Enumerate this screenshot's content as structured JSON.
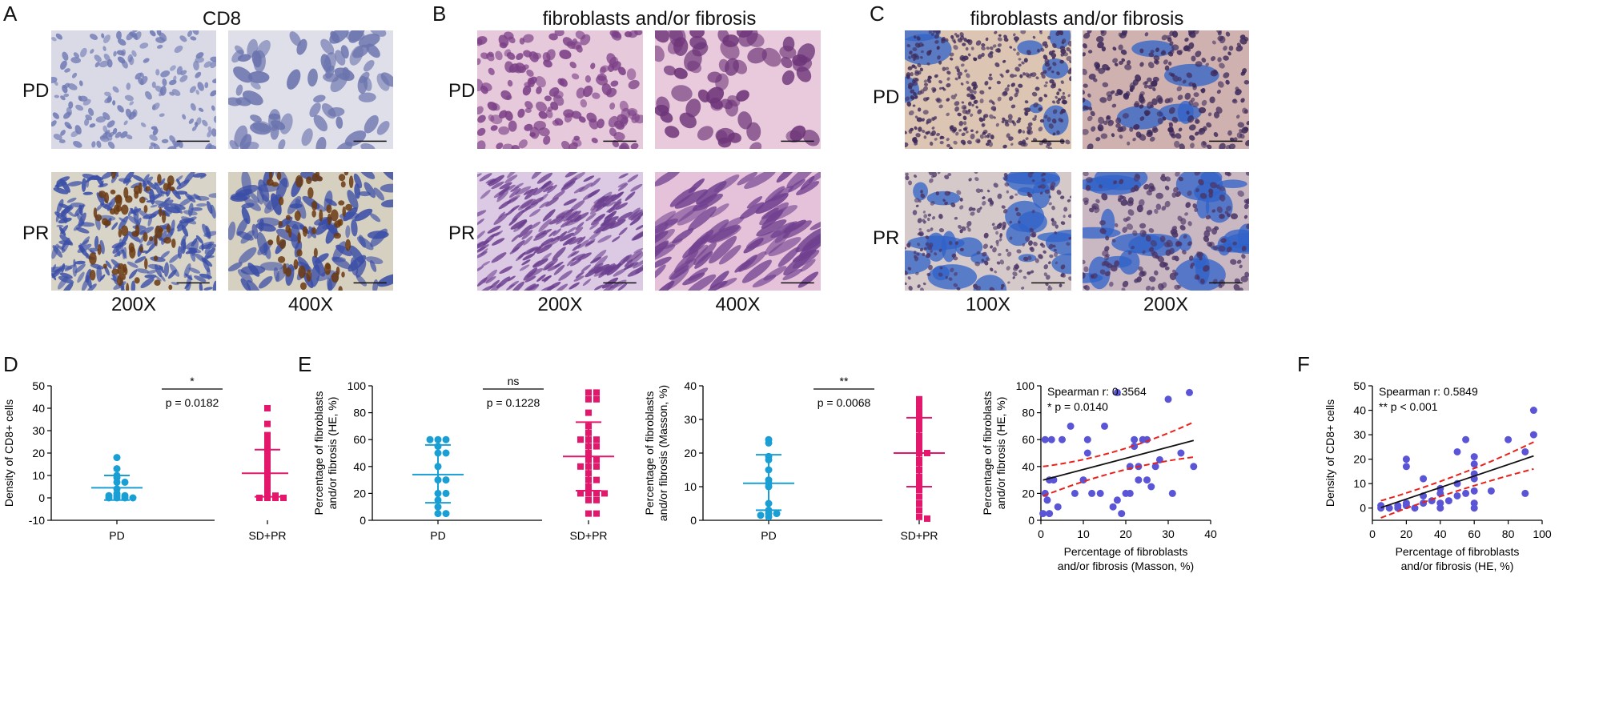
{
  "panels": {
    "A": {
      "letter": "A",
      "title": "CD8",
      "row_labels": [
        "PD",
        "PR"
      ],
      "magnifications": [
        "200X",
        "400X"
      ]
    },
    "B": {
      "letter": "B",
      "title": "fibroblasts and/or fibrosis",
      "row_labels": [
        "PD",
        "PR"
      ],
      "magnifications": [
        "200X",
        "400X"
      ]
    },
    "C": {
      "letter": "C",
      "title": "fibroblasts and/or fibrosis",
      "row_labels": [
        "PD",
        "PR"
      ],
      "magnifications": [
        "100X",
        "200X"
      ]
    },
    "D": {
      "letter": "D"
    },
    "E": {
      "letter": "E"
    },
    "F": {
      "letter": "F"
    }
  },
  "colors": {
    "pd": "#1a9fd4",
    "sdpr": "#e3176b",
    "scatter": "#5a55d6",
    "ci": "#e8221b",
    "fit": "#111111"
  },
  "chart_data": [
    {
      "id": "D",
      "type": "scatter",
      "categories": [
        "PD",
        "SD+PR"
      ],
      "ylabel": "Density of CD8+ cells",
      "ylim": [
        -10,
        50
      ],
      "yticks": [
        -10,
        0,
        10,
        20,
        30,
        40,
        50
      ],
      "significance": "*",
      "p_text": "p = 0.0182",
      "groups": [
        {
          "name": "PD",
          "mean": 4.5,
          "sd_low": -1,
          "sd_high": 10,
          "points": [
            18,
            13,
            10,
            9,
            7,
            7,
            4,
            2,
            1,
            1,
            1,
            0,
            0,
            0,
            0
          ]
        },
        {
          "name": "SD+PR",
          "mean": 11,
          "sd_low": 0.5,
          "sd_high": 21.5,
          "points": [
            40,
            33,
            28,
            26,
            25,
            24,
            23,
            22,
            21,
            20,
            19,
            17,
            15,
            13,
            12,
            10,
            9,
            8,
            7,
            6,
            5,
            4,
            3,
            2,
            1,
            1,
            0,
            0,
            0,
            0
          ]
        }
      ]
    },
    {
      "id": "E1",
      "type": "scatter",
      "categories": [
        "PD",
        "SD+PR"
      ],
      "ylabel": "Percentage of fibroblasts and/or fibrosis (HE, %)",
      "ylim": [
        0,
        100
      ],
      "yticks": [
        0,
        20,
        40,
        60,
        80,
        100
      ],
      "significance": "ns",
      "p_text": "p = 0.1228",
      "groups": [
        {
          "name": "PD",
          "mean": 34,
          "sd_low": 13,
          "sd_high": 56,
          "points": [
            60,
            60,
            60,
            55,
            50,
            50,
            40,
            30,
            30,
            20,
            20,
            15,
            10,
            5,
            5
          ]
        },
        {
          "name": "SD+PR",
          "mean": 47.5,
          "sd_low": 22,
          "sd_high": 73,
          "points": [
            95,
            95,
            90,
            90,
            80,
            70,
            65,
            60,
            60,
            60,
            55,
            55,
            50,
            45,
            45,
            40,
            40,
            40,
            35,
            30,
            30,
            25,
            20,
            20,
            20,
            20,
            15,
            15,
            5,
            5
          ]
        }
      ]
    },
    {
      "id": "E2",
      "type": "scatter",
      "categories": [
        "PD",
        "SD+PR"
      ],
      "ylabel": "Percentage of fibroblasts and/or fibrosis (Masson, %)",
      "ylim": [
        0,
        40
      ],
      "yticks": [
        0,
        10,
        20,
        30,
        40
      ],
      "significance": "**",
      "p_text": "p = 0.0068",
      "groups": [
        {
          "name": "PD",
          "mean": 11,
          "sd_low": 3,
          "sd_high": 19.5,
          "points": [
            24,
            23,
            19,
            18,
            15,
            12,
            11,
            10,
            5,
            3,
            2,
            2,
            1.5,
            1
          ]
        },
        {
          "name": "SD+PR",
          "mean": 20,
          "sd_low": 10,
          "sd_high": 30.5,
          "points": [
            36,
            35,
            34,
            33,
            32,
            31,
            30,
            29,
            28,
            27,
            25,
            24,
            23,
            22,
            21,
            20,
            20,
            18,
            17,
            15,
            13,
            12,
            11,
            9,
            7,
            5,
            3,
            1,
            0.5
          ]
        }
      ]
    },
    {
      "id": "E3",
      "type": "scatter",
      "xlabel": "Percentage of fibroblasts and/or fibrosis (Masson, %)",
      "ylabel": "Percentage of fibroblasts and/or fibrosis (HE, %)",
      "xlim": [
        0,
        40
      ],
      "ylim": [
        0,
        100
      ],
      "xticks": [
        0,
        10,
        20,
        30,
        40
      ],
      "yticks": [
        0,
        20,
        40,
        60,
        80,
        100
      ],
      "annotation": [
        "Spearman r: 0.3564",
        "* p = 0.0140"
      ],
      "points": [
        [
          0.5,
          5
        ],
        [
          1,
          60
        ],
        [
          1,
          20
        ],
        [
          1.5,
          15
        ],
        [
          2,
          5
        ],
        [
          2,
          30
        ],
        [
          2.5,
          60
        ],
        [
          3,
          30
        ],
        [
          4,
          10
        ],
        [
          5,
          60
        ],
        [
          7,
          70
        ],
        [
          8,
          20
        ],
        [
          10,
          30
        ],
        [
          11,
          50
        ],
        [
          11,
          60
        ],
        [
          12,
          20
        ],
        [
          14,
          20
        ],
        [
          15,
          70
        ],
        [
          17,
          10
        ],
        [
          18,
          15
        ],
        [
          18,
          95
        ],
        [
          19,
          5
        ],
        [
          20,
          20
        ],
        [
          21,
          20
        ],
        [
          21,
          40
        ],
        [
          22,
          60
        ],
        [
          22,
          55
        ],
        [
          23,
          40
        ],
        [
          23,
          30
        ],
        [
          24,
          60
        ],
        [
          25,
          60
        ],
        [
          26,
          25
        ],
        [
          27,
          40
        ],
        [
          28,
          45
        ],
        [
          30,
          90
        ],
        [
          31,
          20
        ],
        [
          33,
          50
        ],
        [
          35,
          95
        ],
        [
          36,
          40
        ],
        [
          25,
          30
        ]
      ],
      "fit": {
        "slope": 0.83,
        "intercept": 29.5,
        "x_range": [
          0.5,
          36
        ]
      },
      "ci_upper": [
        [
          0.5,
          40
        ],
        [
          18,
          47
        ],
        [
          36,
          73
        ]
      ],
      "ci_lower": [
        [
          0.5,
          18
        ],
        [
          18,
          40
        ],
        [
          36,
          47
        ]
      ]
    },
    {
      "id": "F",
      "type": "scatter",
      "xlabel": "Percentage of fibroblasts and/or fibrosis (HE, %)",
      "ylabel": "Density of CD8+ cells",
      "xlim": [
        0,
        100
      ],
      "ylim": [
        -5,
        50
      ],
      "xticks": [
        0,
        20,
        40,
        60,
        80,
        100
      ],
      "yticks": [
        0,
        10,
        20,
        30,
        40,
        50
      ],
      "annotation": [
        "Spearman r: 0.5849",
        "** p < 0.001"
      ],
      "points": [
        [
          5,
          0
        ],
        [
          5,
          1
        ],
        [
          10,
          0
        ],
        [
          15,
          0
        ],
        [
          15,
          1
        ],
        [
          20,
          20
        ],
        [
          20,
          17
        ],
        [
          20,
          2
        ],
        [
          20,
          1
        ],
        [
          25,
          0
        ],
        [
          30,
          12
        ],
        [
          30,
          5
        ],
        [
          30,
          2
        ],
        [
          35,
          3
        ],
        [
          40,
          8
        ],
        [
          40,
          6
        ],
        [
          40,
          2
        ],
        [
          40,
          0
        ],
        [
          45,
          3
        ],
        [
          50,
          23
        ],
        [
          50,
          10
        ],
        [
          50,
          5
        ],
        [
          55,
          28
        ],
        [
          55,
          6
        ],
        [
          60,
          21
        ],
        [
          60,
          18
        ],
        [
          60,
          14
        ],
        [
          60,
          12
        ],
        [
          60,
          7
        ],
        [
          60,
          2
        ],
        [
          60,
          0
        ],
        [
          70,
          7
        ],
        [
          80,
          28
        ],
        [
          90,
          23
        ],
        [
          90,
          6
        ],
        [
          95,
          40
        ],
        [
          95,
          30
        ]
      ],
      "fit": {
        "slope": 0.235,
        "intercept": -1,
        "x_range": [
          5,
          95
        ]
      },
      "ci_upper": [
        [
          5,
          3
        ],
        [
          50,
          12
        ],
        [
          95,
          27
        ]
      ],
      "ci_lower": [
        [
          5,
          -4
        ],
        [
          50,
          8
        ],
        [
          95,
          16
        ]
      ]
    }
  ]
}
